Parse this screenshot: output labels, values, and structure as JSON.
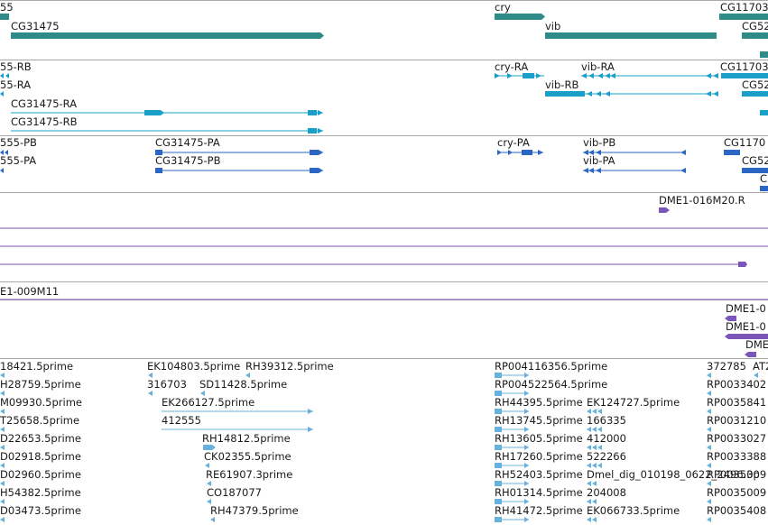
{
  "colors": {
    "gene": "#2e8b87",
    "transcript": "#1aa0c8",
    "cds": "#2b66c4",
    "clone": "#7b55b8",
    "est": "#6ab0dc",
    "separator": "#a8a8a8"
  },
  "genes": {
    "labels": [
      "55",
      "CG31475",
      "cry",
      "vib",
      "CG11703",
      "CG52"
    ]
  },
  "transcripts": {
    "labels": [
      "55-RB",
      "55-RA",
      "CG31475-RA",
      "CG31475-RB",
      "cry-RA",
      "vib-RA",
      "vib-RB",
      "CG11703",
      "CG52"
    ]
  },
  "cds": {
    "labels": [
      "555-PB",
      "555-PA",
      "CG31475-PA",
      "CG31475-PB",
      "cry-PA",
      "vib-PB",
      "vib-PA",
      "CG1170",
      "CG52",
      "C"
    ]
  },
  "clones_a": {
    "labels": [
      "DME1-016M20.R"
    ]
  },
  "clones_b": {
    "labels": [
      "E1-009M11"
    ]
  },
  "clones_c": {
    "labels": [
      "DME1-0",
      "DME1-0",
      "DME"
    ]
  },
  "ests": {
    "labels": [
      "18421.5prime",
      "EK104803.5prime",
      "RH39312.5prime",
      "RP004116356.5prime",
      "372785",
      "AT2",
      "H28759.5prime",
      "316703",
      "SD11428.5prime",
      "RP004522564.5prime",
      "RP0033402",
      "M09930.5prime",
      "EK266127.5prime",
      "RH44395.5prime",
      "EK124727.5prime",
      "RP0035841",
      "T25658.5prime",
      "412555",
      "RH13745.5prime",
      "166335",
      "RP0031210",
      "D22653.5prime",
      "RH14812.5prime",
      "RH13605.5prime",
      "412000",
      "RP0033027",
      "D02918.5prime",
      "CK02355.5prime",
      "RH17260.5prime",
      "522266",
      "RP0033388",
      "D02960.5prime",
      "RE61907.3prime",
      "RH52403.5prime",
      "Dmel_dig_010198_0622_2496.3p",
      "RP0035009",
      "H54382.5prime",
      "CO187077",
      "RH01314.5prime",
      "204008",
      "RP0035009",
      "D03473.5prime",
      "RH47379.5prime",
      "RH41472.5prime",
      "EK066733.5prime",
      "RP0035408"
    ]
  }
}
